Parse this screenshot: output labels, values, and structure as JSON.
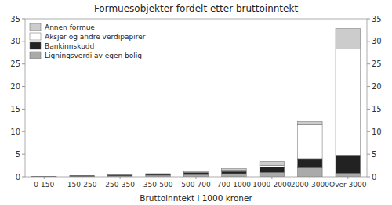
{
  "chart_data": {
    "type": "bar",
    "stacked": true,
    "title": "Formuesobjekter fordelt etter bruttoinntekt",
    "xlabel": "Bruttoinntekt i 1000 kroner",
    "categories": [
      "0-150",
      "150-250",
      "250-350",
      "350-500",
      "500-700",
      "700-1000",
      "1000-2000",
      "2000-3000",
      "Over 3000"
    ],
    "series": [
      {
        "name": "Ligningsverdi av egen bolig",
        "color": "#aaaaaa",
        "values": [
          0.05,
          0.1,
          0.2,
          0.35,
          0.5,
          0.7,
          1.0,
          2.0,
          0.8
        ]
      },
      {
        "name": "Bankinnskudd",
        "color": "#222222",
        "values": [
          0.05,
          0.1,
          0.2,
          0.2,
          0.4,
          0.5,
          1.2,
          2.0,
          4.0
        ]
      },
      {
        "name": "Aksjer og andre verdipapirer",
        "color": "#ffffff",
        "values": [
          0.0,
          0.0,
          0.0,
          0.05,
          0.05,
          0.3,
          0.3,
          7.5,
          23.5
        ]
      },
      {
        "name": "Annen formue",
        "color": "#cccccc",
        "values": [
          0.0,
          0.05,
          0.05,
          0.1,
          0.15,
          0.3,
          0.9,
          0.7,
          4.5
        ]
      }
    ],
    "ylim": [
      0,
      35
    ],
    "yticks": [
      0,
      5,
      10,
      15,
      20,
      25,
      30,
      35
    ],
    "y2lim": [
      0,
      35
    ],
    "y2ticks": [
      0,
      5,
      10,
      15,
      20,
      25,
      30,
      35
    ],
    "legend": "upper left",
    "grid": false
  }
}
